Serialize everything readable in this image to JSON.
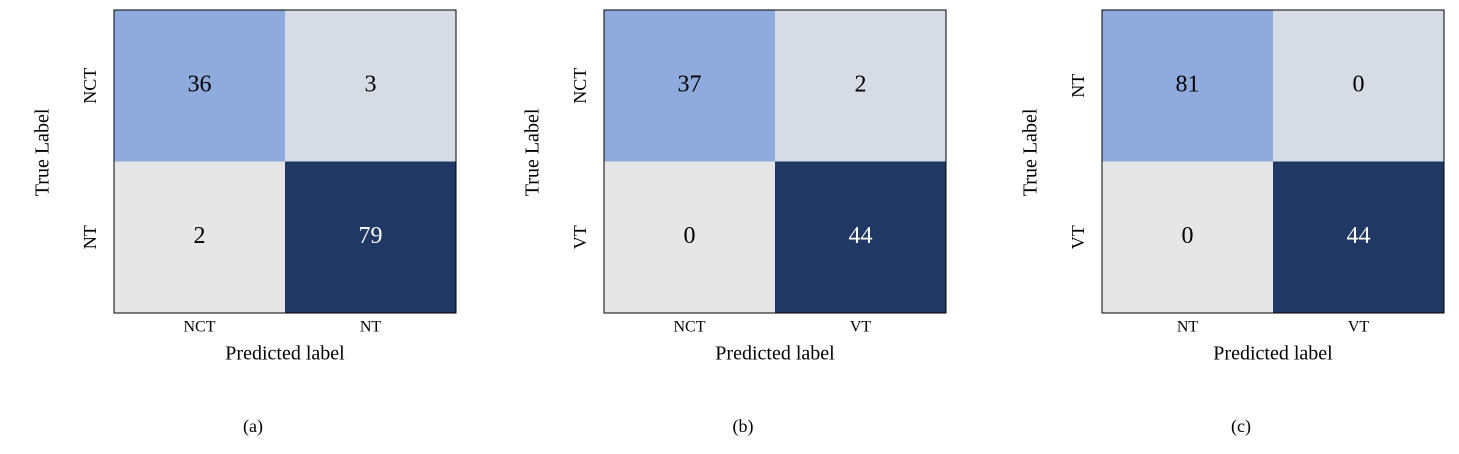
{
  "chart_data": [
    {
      "type": "heatmap",
      "x_label": "Predicted label",
      "y_label": "True Label",
      "caption": "(a)",
      "x_categories": [
        "NCT",
        "NT"
      ],
      "y_categories": [
        "NCT",
        "NT"
      ],
      "values": [
        [
          36,
          3
        ],
        [
          2,
          79
        ]
      ],
      "colors": [
        [
          "#8faadc",
          "#d6dce4"
        ],
        [
          "#e7e6e6",
          "#203864"
        ]
      ]
    },
    {
      "type": "heatmap",
      "x_label": "Predicted label",
      "y_label": "True Label",
      "caption": "(b)",
      "x_categories": [
        "NCT",
        "VT"
      ],
      "y_categories": [
        "NCT",
        "VT"
      ],
      "values": [
        [
          37,
          2
        ],
        [
          0,
          44
        ]
      ],
      "colors": [
        [
          "#8faadc",
          "#d6dce4"
        ],
        [
          "#e7e6e6",
          "#203864"
        ]
      ]
    },
    {
      "type": "heatmap",
      "x_label": "Predicted label",
      "y_label": "True Label",
      "caption": "(c)",
      "x_categories": [
        "NT",
        "VT"
      ],
      "y_categories": [
        "NT",
        "VT"
      ],
      "values": [
        [
          81,
          0
        ],
        [
          0,
          44
        ]
      ],
      "colors": [
        [
          "#8faadc",
          "#d6dce4"
        ],
        [
          "#e7e6e6",
          "#203864"
        ]
      ]
    }
  ]
}
